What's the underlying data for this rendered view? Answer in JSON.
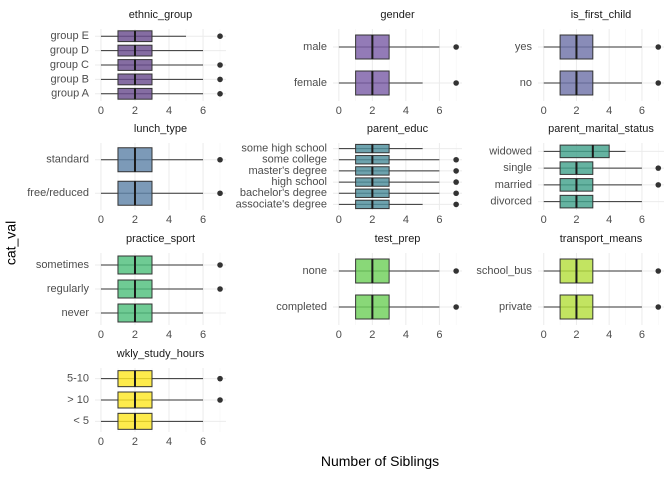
{
  "chart_data": {
    "type": "boxplot",
    "xlabel": "Number of Siblings",
    "ylabel": "cat_val",
    "xlim": [
      -0.35,
      7.35
    ],
    "xticks": [
      0,
      2,
      4,
      6
    ],
    "grid": true,
    "panels": [
      {
        "title": "ethnic_group",
        "color": "#6a4d8e",
        "categories": [
          {
            "label": "group E",
            "min": 0,
            "q1": 1,
            "median": 2,
            "q3": 3,
            "max": 5,
            "outliers": [
              7
            ]
          },
          {
            "label": "group D",
            "min": 0,
            "q1": 1,
            "median": 2,
            "q3": 3,
            "max": 6,
            "outliers": []
          },
          {
            "label": "group C",
            "min": 0,
            "q1": 1,
            "median": 2,
            "q3": 3,
            "max": 6,
            "outliers": [
              7
            ]
          },
          {
            "label": "group B",
            "min": 0,
            "q1": 1,
            "median": 2,
            "q3": 3,
            "max": 6,
            "outliers": [
              7
            ]
          },
          {
            "label": "group A",
            "min": 0,
            "q1": 1,
            "median": 2,
            "q3": 3,
            "max": 6,
            "outliers": [
              7
            ]
          }
        ]
      },
      {
        "title": "gender",
        "color": "#7b5ea7",
        "categories": [
          {
            "label": "male",
            "min": 0,
            "q1": 1,
            "median": 2,
            "q3": 3,
            "max": 6,
            "outliers": [
              7
            ]
          },
          {
            "label": "female",
            "min": 0,
            "q1": 1,
            "median": 2,
            "q3": 3,
            "max": 5,
            "outliers": [
              7
            ]
          }
        ]
      },
      {
        "title": "is_first_child",
        "color": "#6f73a8",
        "categories": [
          {
            "label": "yes",
            "min": 0,
            "q1": 1,
            "median": 2,
            "q3": 3,
            "max": 6,
            "outliers": [
              7
            ]
          },
          {
            "label": "no",
            "min": 0,
            "q1": 1,
            "median": 2,
            "q3": 3,
            "max": 6,
            "outliers": [
              7
            ]
          }
        ]
      },
      {
        "title": "lunch_type",
        "color": "#5f84a8",
        "categories": [
          {
            "label": "standard",
            "min": 0,
            "q1": 1,
            "median": 2,
            "q3": 3,
            "max": 6,
            "outliers": [
              7
            ]
          },
          {
            "label": "free/reduced",
            "min": 0,
            "q1": 1,
            "median": 2,
            "q3": 3,
            "max": 6,
            "outliers": [
              7
            ]
          }
        ]
      },
      {
        "title": "parent_educ",
        "color": "#4e8f9c",
        "categories": [
          {
            "label": "some high school",
            "min": 0,
            "q1": 1,
            "median": 2,
            "q3": 3,
            "max": 5,
            "outliers": []
          },
          {
            "label": "some college",
            "min": 0,
            "q1": 1,
            "median": 2,
            "q3": 3,
            "max": 6,
            "outliers": [
              7
            ]
          },
          {
            "label": "master's degree",
            "min": 0,
            "q1": 1,
            "median": 2,
            "q3": 3,
            "max": 6,
            "outliers": [
              7
            ]
          },
          {
            "label": "high school",
            "min": 0,
            "q1": 1,
            "median": 2,
            "q3": 3,
            "max": 6,
            "outliers": [
              7
            ]
          },
          {
            "label": "bachelor's degree",
            "min": 0,
            "q1": 1,
            "median": 2,
            "q3": 3,
            "max": 6,
            "outliers": [
              7
            ]
          },
          {
            "label": "associate's degree",
            "min": 0,
            "q1": 1,
            "median": 2,
            "q3": 3,
            "max": 5,
            "outliers": [
              7
            ]
          }
        ]
      },
      {
        "title": "parent_marital_status",
        "color": "#43a28c",
        "categories": [
          {
            "label": "widowed",
            "min": 0,
            "q1": 1,
            "median": 3,
            "q3": 4,
            "max": 5,
            "outliers": []
          },
          {
            "label": "single",
            "min": 0,
            "q1": 1,
            "median": 2,
            "q3": 3,
            "max": 6,
            "outliers": [
              7
            ]
          },
          {
            "label": "married",
            "min": 0,
            "q1": 1,
            "median": 2,
            "q3": 3,
            "max": 6,
            "outliers": [
              7
            ]
          },
          {
            "label": "divorced",
            "min": 0,
            "q1": 1,
            "median": 2,
            "q3": 3,
            "max": 6,
            "outliers": []
          }
        ]
      },
      {
        "title": "practice_sport",
        "color": "#4fbf7c",
        "categories": [
          {
            "label": "sometimes",
            "min": 0,
            "q1": 1,
            "median": 2,
            "q3": 3,
            "max": 6,
            "outliers": [
              7
            ]
          },
          {
            "label": "regularly",
            "min": 0,
            "q1": 1,
            "median": 2,
            "q3": 3,
            "max": 6,
            "outliers": [
              7
            ]
          },
          {
            "label": "never",
            "min": 0,
            "q1": 1,
            "median": 2,
            "q3": 3,
            "max": 6,
            "outliers": []
          }
        ]
      },
      {
        "title": "test_prep",
        "color": "#6fcf5a",
        "categories": [
          {
            "label": "none",
            "min": 0,
            "q1": 1,
            "median": 2,
            "q3": 3,
            "max": 6,
            "outliers": [
              7
            ]
          },
          {
            "label": "completed",
            "min": 0,
            "q1": 1,
            "median": 2,
            "q3": 3,
            "max": 6,
            "outliers": [
              7
            ]
          }
        ]
      },
      {
        "title": "transport_means",
        "color": "#b4de3e",
        "categories": [
          {
            "label": "school_bus",
            "min": 0,
            "q1": 1,
            "median": 2,
            "q3": 3,
            "max": 6,
            "outliers": [
              7
            ]
          },
          {
            "label": "private",
            "min": 0,
            "q1": 1,
            "median": 2,
            "q3": 3,
            "max": 6,
            "outliers": [
              7
            ]
          }
        ]
      },
      {
        "title": "wkly_study_hours",
        "color": "#fde725",
        "categories": [
          {
            "label": "5-10",
            "min": 0,
            "q1": 1,
            "median": 2,
            "q3": 3,
            "max": 6,
            "outliers": [
              7
            ]
          },
          {
            "label": "> 10",
            "min": 0,
            "q1": 1,
            "median": 2,
            "q3": 3,
            "max": 6,
            "outliers": [
              7
            ]
          },
          {
            "label": "< 5",
            "min": 0,
            "q1": 1,
            "median": 2,
            "q3": 3,
            "max": 6,
            "outliers": []
          }
        ]
      }
    ]
  }
}
